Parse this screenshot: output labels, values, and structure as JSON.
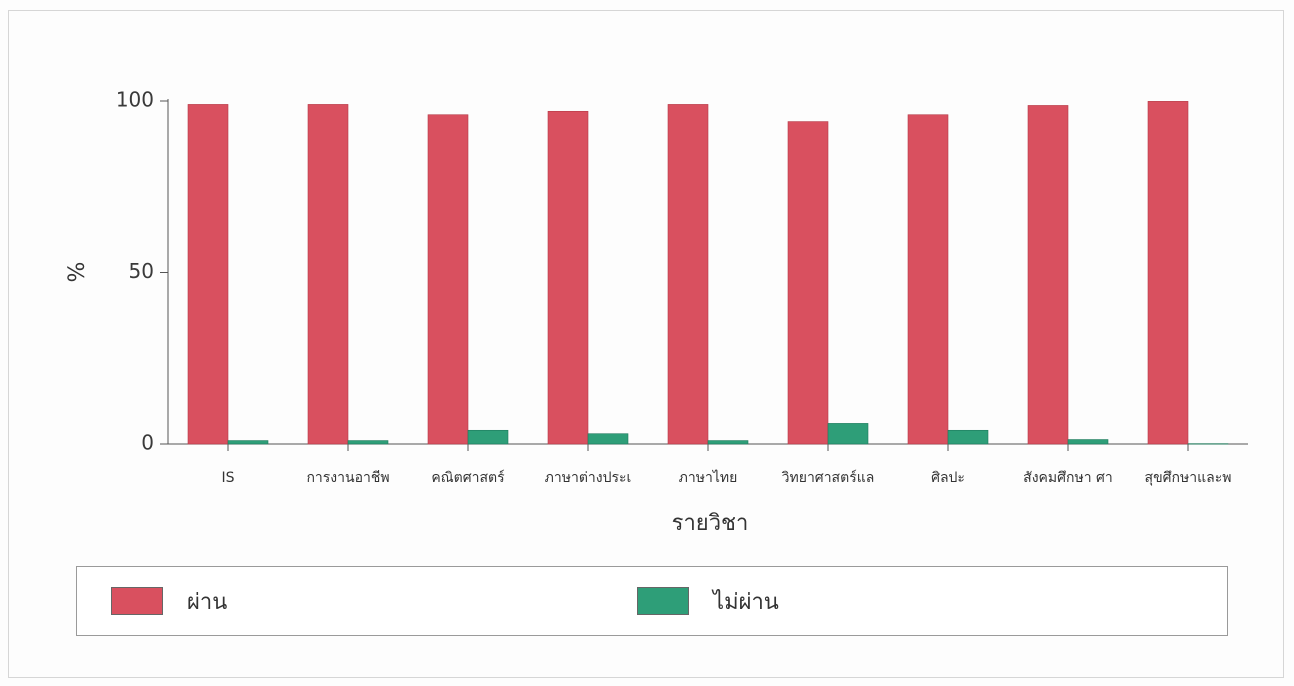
{
  "chart_data": {
    "type": "bar",
    "xlabel": "รายวิชา",
    "ylabel": "%",
    "ylim": [
      0,
      100
    ],
    "yticks": [
      0,
      50,
      100
    ],
    "grid": false,
    "legend_position": "bottom",
    "categories": [
      "IS",
      "การงานอาชีพ",
      "คณิตศาสตร์",
      "ภาษาต่างประเ",
      "ภาษาไทย",
      "วิทยาศาสตร์แล",
      "ศิลปะ",
      "สังคมศึกษา ศา",
      "สุขศึกษาและพ"
    ],
    "series": [
      {
        "name": "ผ่าน",
        "color": "#d9505f",
        "values": [
          99,
          99,
          96,
          97,
          99,
          94,
          96,
          98.7,
          99.9
        ]
      },
      {
        "name": "ไม่ผ่าน",
        "color": "#2e9e78",
        "values": [
          1,
          1,
          4,
          3,
          1,
          6,
          4,
          1.3,
          0.1
        ]
      }
    ]
  }
}
